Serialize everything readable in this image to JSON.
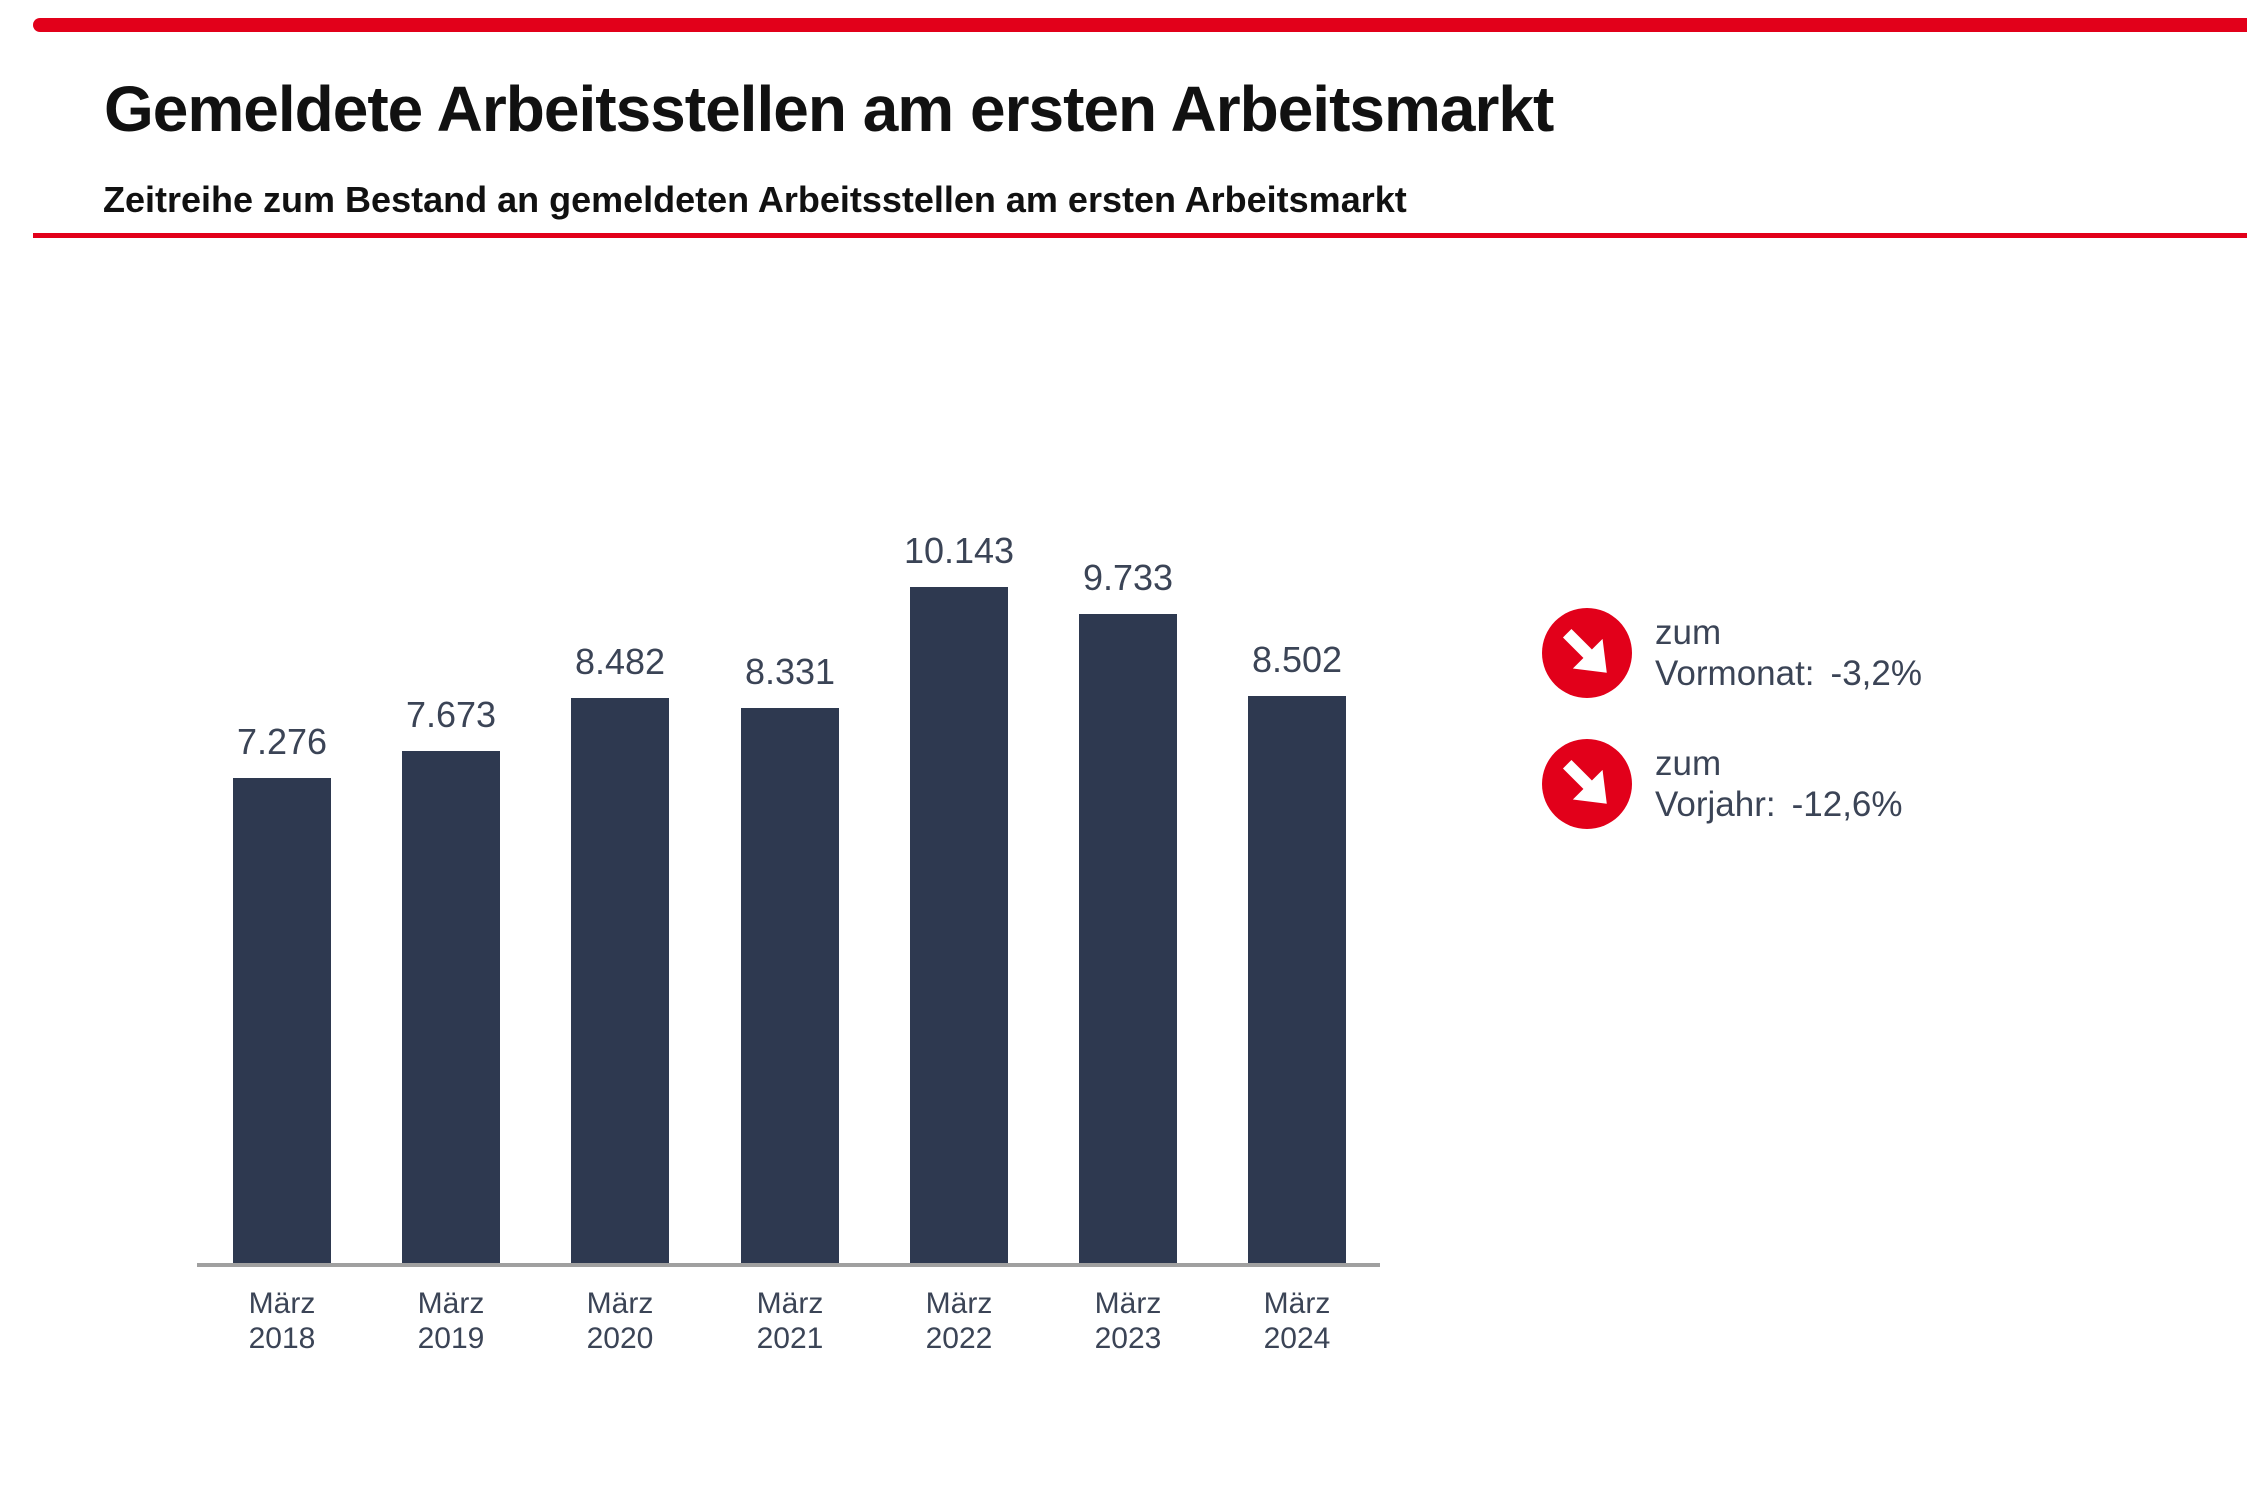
{
  "page": {
    "title": "Gemeldete Arbeitsstellen am ersten Arbeitsmarkt",
    "subtitle": "Zeitreihe zum Bestand an gemeldeten Arbeitsstellen am ersten Arbeitsmarkt"
  },
  "colors": {
    "accent_red": "#e2001a",
    "bar": "#2e3950",
    "heading_text": "#111111",
    "chart_text": "#3b4456",
    "axis_line": "#a0a0a0",
    "badge_arrow": "#ffffff"
  },
  "chart_data": {
    "type": "bar",
    "title": "Gemeldete Arbeitsstellen am ersten Arbeitsmarkt",
    "subtitle": "Zeitreihe zum Bestand an gemeldeten Arbeitsstellen am ersten Arbeitsmarkt",
    "categories": [
      "März 2018",
      "März 2019",
      "März 2020",
      "März 2021",
      "März 2022",
      "März 2023",
      "März 2024"
    ],
    "category_lines": [
      {
        "month": "März",
        "year": "2018"
      },
      {
        "month": "März",
        "year": "2019"
      },
      {
        "month": "März",
        "year": "2020"
      },
      {
        "month": "März",
        "year": "2021"
      },
      {
        "month": "März",
        "year": "2022"
      },
      {
        "month": "März",
        "year": "2023"
      },
      {
        "month": "März",
        "year": "2024"
      }
    ],
    "values": [
      7276,
      7673,
      8482,
      8331,
      10143,
      9733,
      8502
    ],
    "value_labels": [
      "7.276",
      "7.673",
      "8.482",
      "8.331",
      "10.143",
      "9.733",
      "8.502"
    ],
    "xlabel": "",
    "ylabel": "",
    "ylim": [
      0,
      11000
    ],
    "grid": false,
    "legend": false,
    "bar_color": "#2e3950"
  },
  "badges": [
    {
      "icon": "arrow-down-right-circle-icon",
      "line1": "zum",
      "label": "Vormonat:",
      "value": "-3,2%"
    },
    {
      "icon": "arrow-down-right-circle-icon",
      "line1": "zum",
      "label": "Vorjahr:",
      "value": "-12,6%"
    }
  ]
}
